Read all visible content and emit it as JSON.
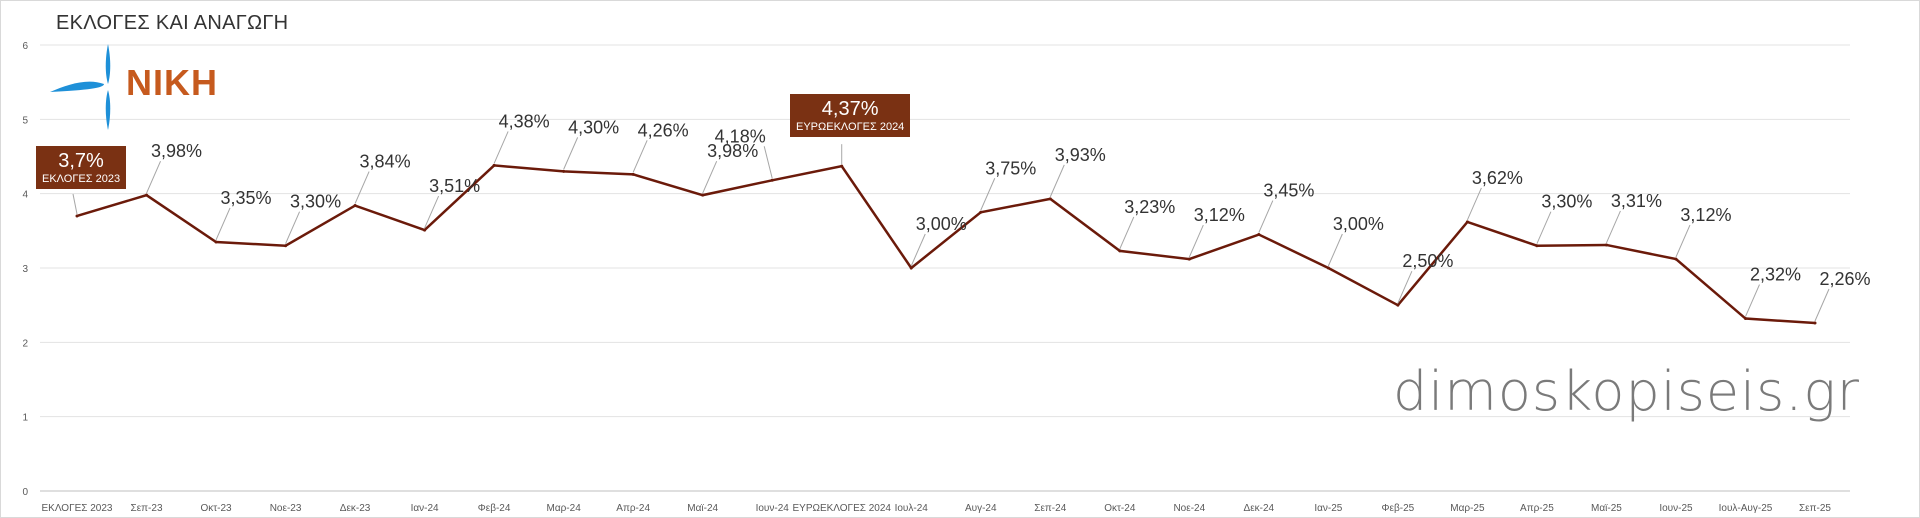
{
  "title": "ΕΚΛΟΓΕΣ ΚΑΙ ΑΝΑΓΩΓΗ",
  "logo_text": "ΝΙΚΗ",
  "watermark": "dimoskopiseis.gr",
  "colors": {
    "line": "#6b1a0a",
    "highlight": "#7a3113",
    "logo_orange": "#c65a1e",
    "logo_blue": "#1e90d8"
  },
  "highlights": [
    {
      "value": "3,7%",
      "caption": "ΕΚΛΟΓΕΣ 2023"
    },
    {
      "value": "4,37%",
      "caption": "ΕΥΡΩΕΚΛΟΓΕΣ 2024"
    }
  ],
  "chart_data": {
    "type": "line",
    "title": "ΕΚΛΟΓΕΣ ΚΑΙ ΑΝΑΓΩΓΗ",
    "xlabel": "",
    "ylabel": "",
    "ylim": [
      0,
      6
    ],
    "yticks": [
      "0",
      "1",
      "2",
      "3",
      "4",
      "5",
      "6"
    ],
    "grid": true,
    "categories": [
      "ΕΚΛΟΓΕΣ 2023",
      "Σεπ-23",
      "Οκτ-23",
      "Νοε-23",
      "Δεκ-23",
      "Ιαν-24",
      "Φεβ-24",
      "Μαρ-24",
      "Απρ-24",
      "Μαϊ-24",
      "Ιουν-24",
      "ΕΥΡΩΕΚΛΟΓΕΣ 2024",
      "Ιουλ-24",
      "Αυγ-24",
      "Σεπ-24",
      "Οκτ-24",
      "Νοε-24",
      "Δεκ-24",
      "Ιαν-25",
      "Φεβ-25",
      "Μαρ-25",
      "Απρ-25",
      "Μαϊ-25",
      "Ιουν-25",
      "Ιουλ-Αυγ-25",
      "Σεπ-25"
    ],
    "values": [
      3.7,
      3.98,
      3.35,
      3.3,
      3.84,
      3.51,
      4.38,
      4.3,
      4.26,
      3.98,
      4.18,
      4.37,
      3.0,
      3.75,
      3.93,
      3.23,
      3.12,
      3.45,
      3.0,
      2.5,
      3.62,
      3.3,
      3.31,
      3.12,
      2.32,
      2.26
    ],
    "data_labels": [
      "3,7%",
      "3,98%",
      "3,35%",
      "3,30%",
      "3,84%",
      "3,51%",
      "4,38%",
      "4,30%",
      "4,26%",
      "3,98%",
      "4,18%",
      "4,37%",
      "3,00%",
      "3,75%",
      "3,93%",
      "3,23%",
      "3,12%",
      "3,45%",
      "3,00%",
      "2,50%",
      "3,62%",
      "3,30%",
      "3,31%",
      "3,12%",
      "2,32%",
      "2,26%"
    ],
    "series": [
      {
        "name": "ΝΙΚΗ"
      }
    ]
  }
}
